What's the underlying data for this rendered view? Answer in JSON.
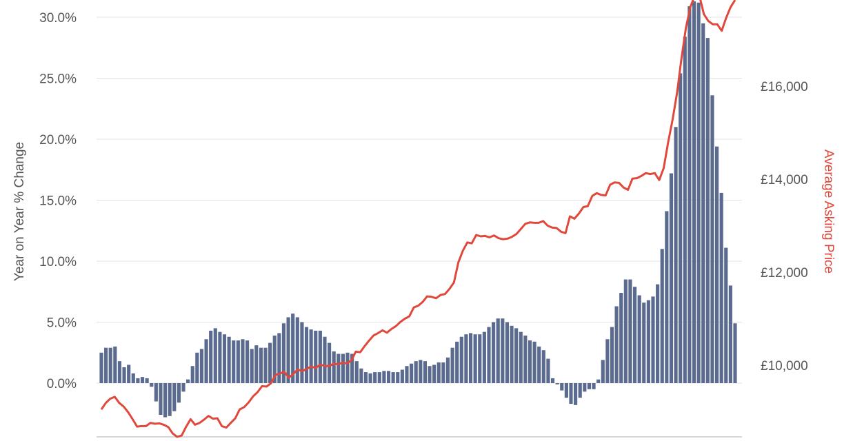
{
  "chart_data": {
    "type": "bar",
    "y_axis_label": "Year on Year % Change",
    "y2_axis_label": "Average Asking Price",
    "y_ticks": [
      "0.0%",
      "5.0%",
      "10.0%",
      "15.0%",
      "20.0%",
      "25.0%",
      "30.0%"
    ],
    "y2_ticks": [
      "£10,000",
      "£12,000",
      "£14,000",
      "£16,000"
    ],
    "ylim": [
      -4.3,
      31.5
    ],
    "y2lim": [
      8650,
      17850
    ],
    "grid": true,
    "bar_color": "#5a6b8f",
    "line_color": "#e0483b",
    "series": [
      {
        "type": "bar",
        "values": [
          2.5,
          2.9,
          2.9,
          3.0,
          1.8,
          1.3,
          1.5,
          0.8,
          0.4,
          0.5,
          0.4,
          -0.3,
          -1.5,
          -2.6,
          -2.8,
          -2.7,
          -2.3,
          -1.6,
          -0.7,
          0.3,
          1.4,
          2.5,
          2.8,
          3.6,
          4.3,
          4.5,
          4.2,
          4.0,
          3.8,
          3.5,
          3.5,
          3.6,
          3.5,
          2.8,
          3.1,
          2.9,
          2.9,
          3.3,
          3.9,
          4.1,
          4.9,
          5.4,
          5.7,
          5.4,
          5.0,
          4.6,
          4.4,
          4.3,
          4.3,
          3.8,
          3.3,
          2.6,
          2.4,
          2.4,
          2.5,
          2.4,
          1.8,
          1.2,
          0.9,
          0.8,
          0.9,
          0.9,
          1.0,
          1.0,
          0.9,
          0.9,
          1.1,
          1.4,
          1.6,
          1.8,
          1.9,
          1.8,
          1.4,
          1.5,
          1.7,
          1.7,
          2.1,
          2.9,
          3.4,
          3.8,
          4.0,
          4.1,
          4.0,
          4.0,
          4.2,
          4.6,
          5.0,
          5.3,
          5.3,
          5.0,
          4.7,
          4.5,
          4.2,
          3.9,
          3.5,
          3.4,
          3.0,
          2.7,
          2.0,
          0.4,
          -0.1,
          -0.6,
          -1.2,
          -1.7,
          -1.8,
          -1.2,
          -0.7,
          -0.5,
          -0.5,
          0.3,
          1.9,
          3.6,
          4.6,
          6.3,
          7.4,
          8.5,
          8.5,
          7.9,
          7.2,
          6.6,
          6.8,
          7.1,
          8.1,
          11.0,
          14.1,
          17.2,
          21.0,
          25.4,
          28.4,
          30.9,
          31.3,
          31.2,
          29.5,
          28.3,
          23.6,
          19.4,
          15.6,
          11.1,
          8.0,
          4.9
        ]
      },
      {
        "type": "line",
        "axis": "right",
        "values": [
          9050,
          9190,
          9280,
          9320,
          9190,
          9110,
          8990,
          8840,
          8680,
          8690,
          8690,
          8760,
          8740,
          8750,
          8720,
          8670,
          8530,
          8460,
          8490,
          8680,
          8840,
          8720,
          8760,
          8830,
          8910,
          8850,
          8860,
          8690,
          8660,
          8760,
          8860,
          9050,
          9100,
          9200,
          9330,
          9420,
          9550,
          9540,
          9610,
          9790,
          9820,
          9860,
          9730,
          9810,
          9910,
          9870,
          9920,
          9970,
          9940,
          10010,
          9990,
          9980,
          10030,
          10020,
          10050,
          10040,
          10100,
          10290,
          10280,
          10410,
          10530,
          10640,
          10690,
          10750,
          10700,
          10780,
          10840,
          10930,
          11000,
          11050,
          11240,
          11280,
          11360,
          11480,
          11470,
          11440,
          11510,
          11530,
          11640,
          11780,
          12210,
          12460,
          12640,
          12620,
          12800,
          12770,
          12780,
          12750,
          12790,
          12730,
          12710,
          12720,
          12760,
          12820,
          12930,
          13040,
          13070,
          13060,
          13060,
          13100,
          13000,
          12960,
          12950,
          12870,
          12840,
          13200,
          13150,
          13260,
          13400,
          13420,
          13640,
          13700,
          13660,
          13650,
          13880,
          13930,
          13920,
          13820,
          13770,
          14010,
          14020,
          14070,
          14130,
          14110,
          14130,
          13980,
          14240,
          14790,
          15280,
          15860,
          16600,
          17260,
          17710,
          17950,
          17950,
          17550,
          17400,
          17330,
          17330,
          17190,
          17470,
          17700,
          17850
        ]
      }
    ]
  }
}
